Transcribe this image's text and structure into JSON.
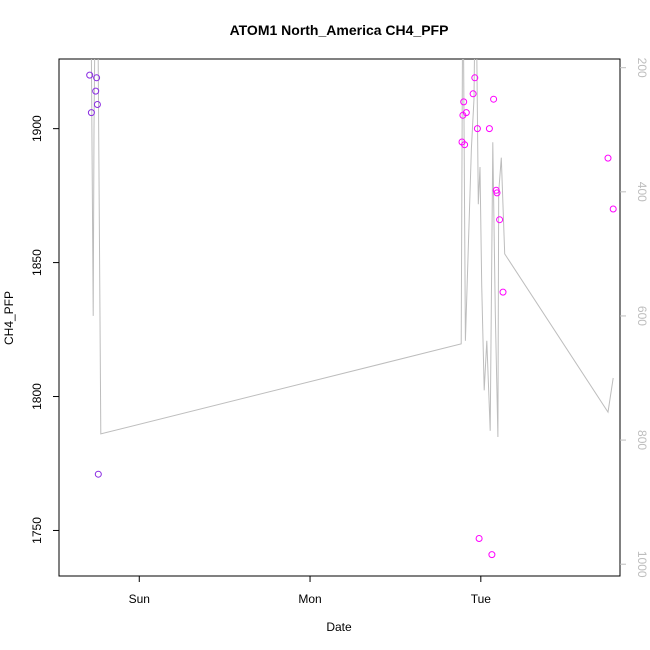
{
  "chart_data": {
    "type": "scatter",
    "title": "ATOM1 North_America CH4_PFP",
    "xlabel": "Date",
    "ylabel": "CH4_PFP",
    "x_ticks": [
      "Sun",
      "Mon",
      "Tue"
    ],
    "y_ticks": [
      "1750",
      "1800",
      "1850",
      "1900"
    ],
    "y2_ticks": [
      "200",
      "400",
      "600",
      "800",
      "1000"
    ],
    "ylim": [
      1733,
      1926
    ],
    "y2lim": [
      1019,
      186
    ],
    "y2_reversed": true,
    "grid": false,
    "colors": {
      "points_low": "#8a2be2",
      "points_high": "#ff00ff",
      "line": "#bdbdbd",
      "axis": "#000000",
      "axis_right": "#bdbdbd"
    },
    "points": [
      {
        "x": 0.31,
        "y": 1920
      },
      {
        "x": 0.33,
        "y": 1906
      },
      {
        "x": 0.38,
        "y": 1914
      },
      {
        "x": 0.39,
        "y": 1919
      },
      {
        "x": 0.4,
        "y": 1909
      },
      {
        "x": 0.41,
        "y": 1771
      },
      {
        "x": 4.67,
        "y": 1895
      },
      {
        "x": 4.68,
        "y": 1905
      },
      {
        "x": 4.69,
        "y": 1910
      },
      {
        "x": 4.7,
        "y": 1894
      },
      {
        "x": 4.72,
        "y": 1906
      },
      {
        "x": 4.8,
        "y": 1913
      },
      {
        "x": 4.82,
        "y": 1919
      },
      {
        "x": 4.85,
        "y": 1900
      },
      {
        "x": 4.87,
        "y": 1747
      },
      {
        "x": 4.99,
        "y": 1900
      },
      {
        "x": 5.02,
        "y": 1741
      },
      {
        "x": 5.04,
        "y": 1911
      },
      {
        "x": 5.07,
        "y": 1877
      },
      {
        "x": 5.08,
        "y": 1876
      },
      {
        "x": 5.11,
        "y": 1866
      },
      {
        "x": 5.15,
        "y": 1839
      },
      {
        "x": 6.38,
        "y": 1889
      },
      {
        "x": 6.44,
        "y": 1870
      }
    ],
    "altitude_line": [
      {
        "x": 0.3,
        "y": 0
      },
      {
        "x": 0.32,
        "y": 0
      },
      {
        "x": 0.35,
        "y": 600
      },
      {
        "x": 0.36,
        "y": 300
      },
      {
        "x": 0.38,
        "y": 0
      },
      {
        "x": 0.4,
        "y": 0
      },
      {
        "x": 0.44,
        "y": 790
      },
      {
        "x": 4.66,
        "y": 645
      },
      {
        "x": 4.68,
        "y": 0
      },
      {
        "x": 4.71,
        "y": 640
      },
      {
        "x": 4.78,
        "y": 330
      },
      {
        "x": 4.81,
        "y": 250
      },
      {
        "x": 4.83,
        "y": 0
      },
      {
        "x": 4.86,
        "y": 420
      },
      {
        "x": 4.88,
        "y": 360
      },
      {
        "x": 4.9,
        "y": 550
      },
      {
        "x": 4.93,
        "y": 720
      },
      {
        "x": 4.96,
        "y": 640
      },
      {
        "x": 5.0,
        "y": 785
      },
      {
        "x": 5.03,
        "y": 320
      },
      {
        "x": 5.06,
        "y": 595
      },
      {
        "x": 5.09,
        "y": 795
      },
      {
        "x": 5.1,
        "y": 400
      },
      {
        "x": 5.13,
        "y": 345
      },
      {
        "x": 5.17,
        "y": 500
      },
      {
        "x": 6.38,
        "y": 755
      },
      {
        "x": 6.44,
        "y": 700
      }
    ],
    "x_tick_values": [
      0.89,
      2.89,
      4.89
    ],
    "xlim": [
      -0.05,
      6.52
    ]
  }
}
